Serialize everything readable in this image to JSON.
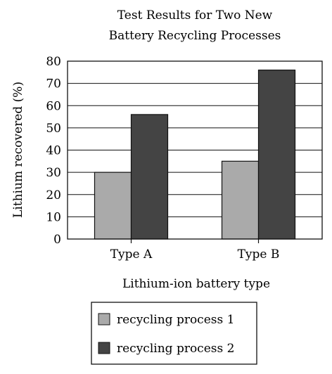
{
  "chart_data": {
    "type": "bar",
    "title": [
      "Test Results for Two New",
      "Battery Recycling Processes"
    ],
    "xlabel": "Lithium-ion battery type",
    "ylabel": "Lithium recovered (%)",
    "categories": [
      "Type A",
      "Type B"
    ],
    "series": [
      {
        "name": "recycling process 1",
        "values": [
          30,
          35
        ],
        "color": "#aaaaaa"
      },
      {
        "name": "recycling process 2",
        "values": [
          56,
          76
        ],
        "color": "#444444"
      }
    ],
    "ylim": [
      0,
      80
    ],
    "yticks": [
      0,
      10,
      20,
      30,
      40,
      50,
      60,
      70,
      80
    ],
    "grid": true,
    "legend_position": "bottom"
  }
}
